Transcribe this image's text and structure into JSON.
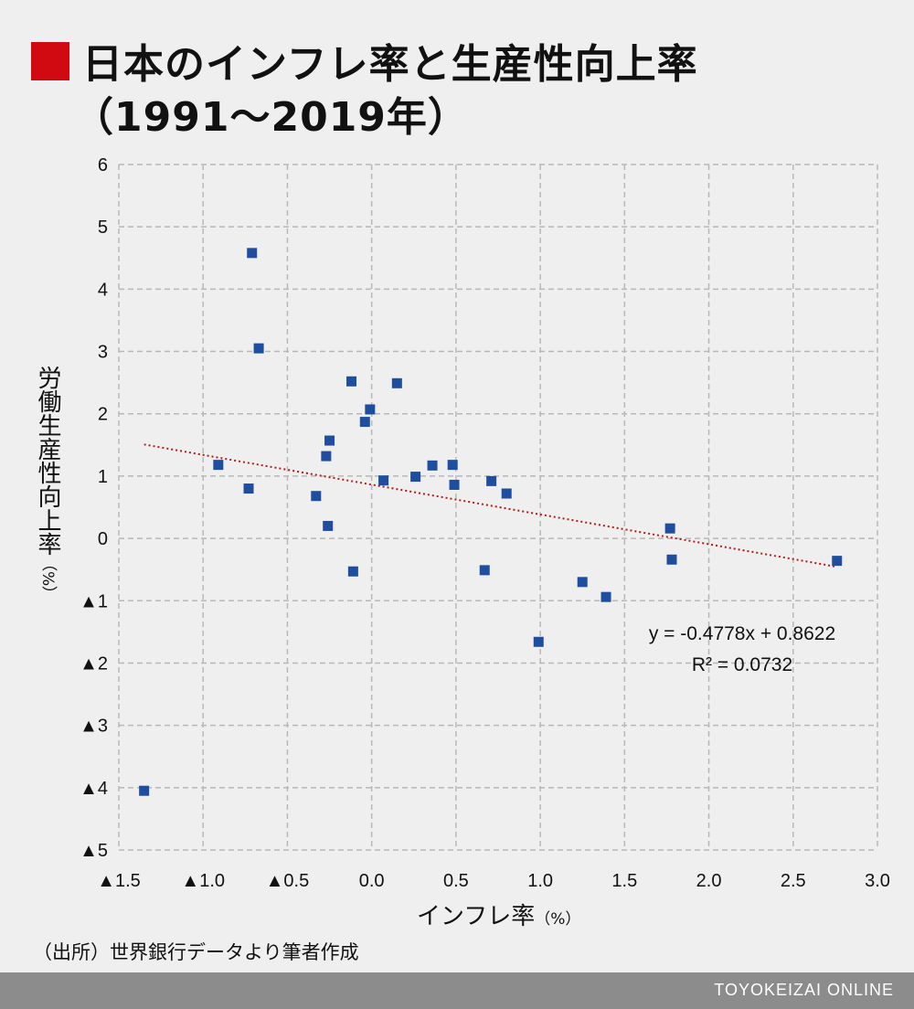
{
  "header": {
    "title_line1": "日本のインフレ率と生産性向上率",
    "title_line2": "（1991〜2019年）",
    "accent_color": "#d00a10"
  },
  "axes": {
    "ylabel": "労働生産性向上率",
    "ylabel_unit": "（%）",
    "xlabel": "インフレ率",
    "xlabel_unit": "（%）"
  },
  "source": "（出所）世界銀行データより筆者作成",
  "footer": {
    "brand": "TOYOKEIZAI ONLINE",
    "bar_color": "#8c8c8c"
  },
  "chart_data": {
    "type": "scatter",
    "xlim": [
      -1.5,
      3.0
    ],
    "ylim": [
      -5,
      6
    ],
    "x_ticks": [
      -1.5,
      -1.0,
      -0.5,
      0.0,
      0.5,
      1.0,
      1.5,
      2.0,
      2.5,
      3.0
    ],
    "x_tick_labels": [
      "▲1.5",
      "▲1.0",
      "▲0.5",
      "0.0",
      "0.5",
      "1.0",
      "1.5",
      "2.0",
      "2.5",
      "3.0"
    ],
    "y_ticks": [
      6,
      5,
      4,
      3,
      2,
      1,
      0,
      -1,
      -2,
      -3,
      -4,
      -5
    ],
    "y_tick_labels": [
      "6",
      "5",
      "4",
      "3",
      "2",
      "1",
      "0",
      "▲1",
      "▲2",
      "▲3",
      "▲4",
      "▲5"
    ],
    "grid": true,
    "marker_color": "#1f4e9e",
    "points": [
      {
        "x": -1.35,
        "y": -4.05
      },
      {
        "x": -0.91,
        "y": 1.18
      },
      {
        "x": -0.73,
        "y": 0.8
      },
      {
        "x": -0.71,
        "y": 4.58
      },
      {
        "x": -0.67,
        "y": 3.05
      },
      {
        "x": -0.33,
        "y": 0.68
      },
      {
        "x": -0.27,
        "y": 1.32
      },
      {
        "x": -0.26,
        "y": 0.2
      },
      {
        "x": -0.25,
        "y": 1.57
      },
      {
        "x": -0.12,
        "y": 2.52
      },
      {
        "x": -0.11,
        "y": -0.53
      },
      {
        "x": -0.04,
        "y": 1.87
      },
      {
        "x": -0.01,
        "y": 2.07
      },
      {
        "x": 0.07,
        "y": 0.93
      },
      {
        "x": 0.15,
        "y": 2.49
      },
      {
        "x": 0.26,
        "y": 0.99
      },
      {
        "x": 0.36,
        "y": 1.17
      },
      {
        "x": 0.48,
        "y": 1.18
      },
      {
        "x": 0.49,
        "y": 0.86
      },
      {
        "x": 0.67,
        "y": -0.51
      },
      {
        "x": 0.71,
        "y": 0.92
      },
      {
        "x": 0.8,
        "y": 0.72
      },
      {
        "x": 0.99,
        "y": -1.66
      },
      {
        "x": 1.25,
        "y": -0.7
      },
      {
        "x": 1.39,
        "y": -0.94
      },
      {
        "x": 1.77,
        "y": 0.16
      },
      {
        "x": 1.78,
        "y": -0.34
      },
      {
        "x": 2.76,
        "y": -0.36
      }
    ],
    "trendline": {
      "style": "dotted",
      "color": "#b01e1e",
      "slope": -0.4778,
      "intercept": 0.8622,
      "x_range": [
        -1.35,
        2.76
      ],
      "equation_label": "y = -0.4778x + 0.8622",
      "r2_label": "R² = 0.0732"
    }
  }
}
